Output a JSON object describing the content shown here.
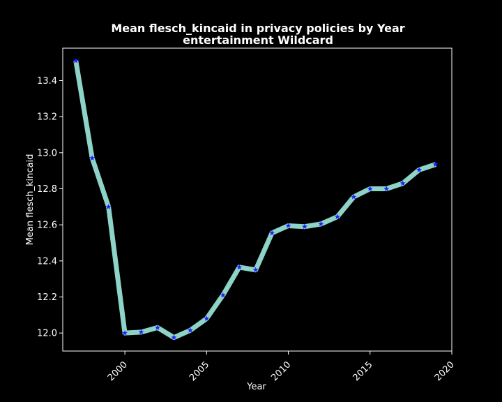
{
  "chart_data": {
    "type": "line",
    "title": "Mean flesch_kincaid in privacy policies by Year",
    "subtitle": "entertainment Wildcard",
    "xlabel": "Year",
    "ylabel": "Mean flesch_kincaid",
    "xlim": [
      1996.2,
      2020.0
    ],
    "ylim": [
      11.9,
      13.58
    ],
    "xticks": [
      2000,
      2005,
      2010,
      2015,
      2020
    ],
    "yticks": [
      12.0,
      12.2,
      12.4,
      12.6,
      12.8,
      13.0,
      13.2,
      13.4
    ],
    "grid": false,
    "line_color": "#8dd3c7",
    "marker_color": "#1f1fff",
    "marker": "star",
    "series": [
      {
        "x": [
          1997,
          1998,
          1999,
          2000,
          2001,
          2002,
          2003,
          2004,
          2005,
          2006,
          2007,
          2008,
          2009,
          2010,
          2011,
          2012,
          2013,
          2014,
          2015,
          2016,
          2017,
          2018,
          2019
        ],
        "values": [
          13.51,
          12.97,
          12.7,
          12.0,
          12.005,
          12.03,
          11.975,
          12.015,
          12.08,
          12.21,
          12.365,
          12.35,
          12.555,
          12.595,
          12.59,
          12.605,
          12.645,
          12.755,
          12.8,
          12.8,
          12.83,
          12.905,
          12.935
        ]
      }
    ]
  }
}
